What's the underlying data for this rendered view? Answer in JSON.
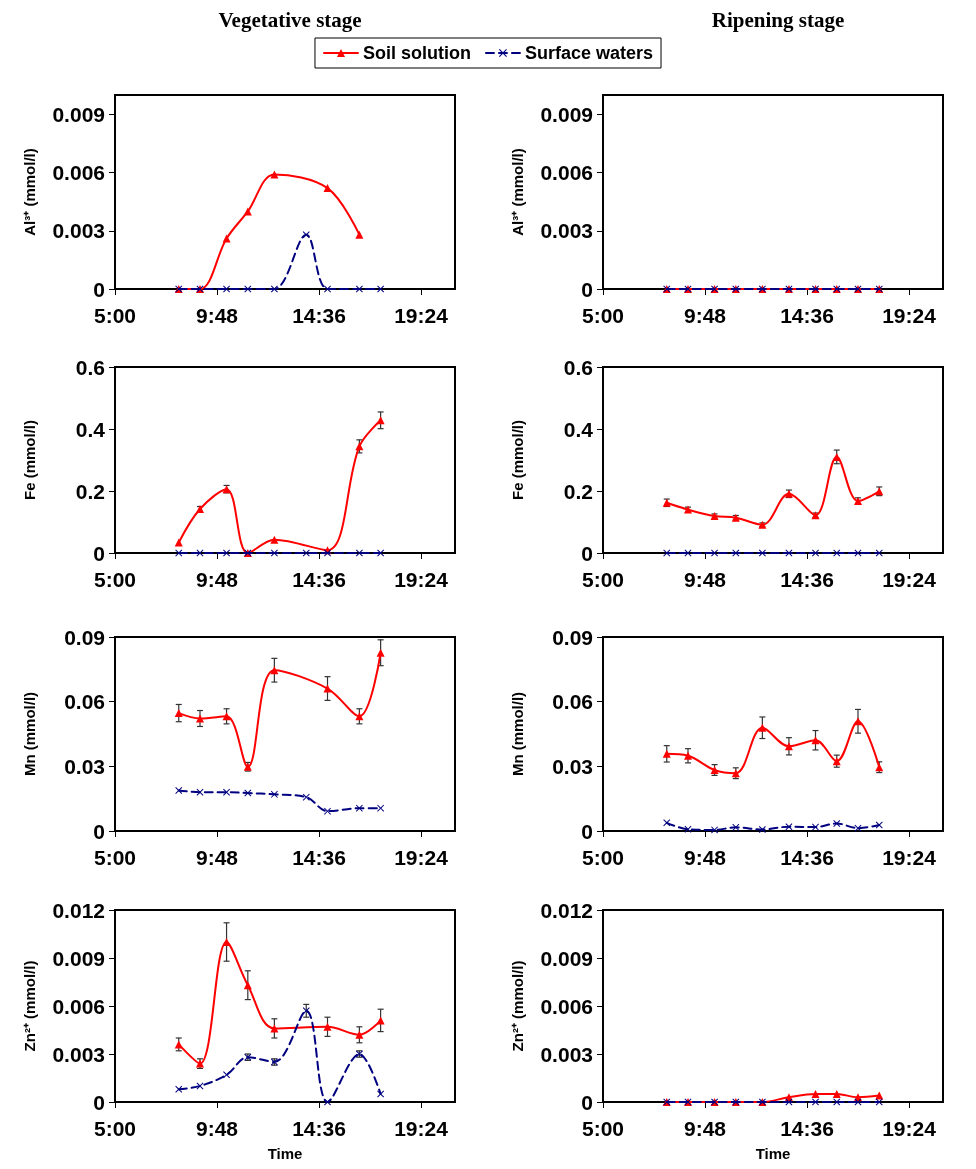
{
  "chart_data": [
    {
      "type": "line",
      "title": "Vegetative stage",
      "ylabel": "Al³⁺ (mmol/l)",
      "legend": "top",
      "xlim": [
        5,
        21
      ],
      "xticks": [
        {
          "value": 5,
          "label": "5:00"
        },
        {
          "value": 9.8,
          "label": "9:48"
        },
        {
          "value": 14.6,
          "label": "14:36"
        },
        {
          "value": 19.4,
          "label": "19:24"
        }
      ],
      "ylim": [
        0,
        0.01
      ],
      "yticks": [
        0,
        0.003,
        0.006,
        0.009
      ],
      "series": [
        {
          "name": "Soil solution",
          "color": "#ff0000",
          "marker": "triangle",
          "line_style": "solid",
          "x": [
            8,
            9,
            10.25,
            11.25,
            12.5,
            15,
            16.5
          ],
          "values": [
            0,
            0,
            0.0026,
            0.004,
            0.0059,
            0.0052,
            0.0028
          ]
        },
        {
          "name": "Surface waters",
          "color": "#000080",
          "marker": "cross",
          "line_style": "dashed",
          "x": [
            8,
            9,
            10.25,
            11.25,
            12.5,
            14,
            15,
            16.5,
            17.5
          ],
          "values": [
            0,
            0,
            0,
            0,
            0,
            0.0028,
            0,
            0,
            0
          ]
        }
      ]
    },
    {
      "type": "line",
      "title": "Ripening stage",
      "ylabel": "Al³⁺ (mmol/l)",
      "xlim": [
        5,
        21
      ],
      "xticks": [
        {
          "value": 5,
          "label": "5:00"
        },
        {
          "value": 9.8,
          "label": "9:48"
        },
        {
          "value": 14.6,
          "label": "14:36"
        },
        {
          "value": 19.4,
          "label": "19:24"
        }
      ],
      "ylim": [
        0,
        0.01
      ],
      "yticks": [
        0,
        0.003,
        0.006,
        0.009
      ],
      "series": [
        {
          "color": "#ff0000",
          "marker": "triangle",
          "line_style": "solid",
          "x": [
            8,
            9,
            10.25,
            11.25,
            12.5,
            13.75,
            15,
            16,
            17,
            18
          ],
          "values": [
            0,
            0,
            0,
            0,
            0,
            0,
            0,
            0,
            0,
            0
          ]
        },
        {
          "color": "#000080",
          "marker": "cross",
          "line_style": "dashed",
          "x": [
            8,
            9,
            10.25,
            11.25,
            12.5,
            13.75,
            15,
            16,
            17,
            18
          ],
          "values": [
            0,
            0,
            0,
            0,
            0,
            0,
            0,
            0,
            0,
            0
          ]
        }
      ]
    },
    {
      "type": "line",
      "ylabel": "Fe (mmol/l)",
      "xlim": [
        5,
        21
      ],
      "xticks": [
        {
          "value": 5,
          "label": "5:00"
        },
        {
          "value": 9.8,
          "label": "9:48"
        },
        {
          "value": 14.6,
          "label": "14:36"
        },
        {
          "value": 19.4,
          "label": "19:24"
        }
      ],
      "ylim": [
        0,
        0.6
      ],
      "yticks": [
        0,
        0.2,
        0.4,
        0.6
      ],
      "series": [
        {
          "color": "#ff0000",
          "marker": "triangle",
          "line_style": "solid",
          "x": [
            8,
            9,
            10.25,
            11.25,
            12.5,
            15,
            16.5,
            17.5
          ],
          "values": [
            0.034,
            0.142,
            0.206,
            0,
            0.043,
            0.009,
            0.344,
            0.428
          ],
          "errors": [
            null,
            0.008,
            0.012,
            null,
            null,
            null,
            0.021,
            0.027
          ]
        },
        {
          "color": "#000080",
          "marker": "cross",
          "line_style": "dashed",
          "x": [
            8,
            9,
            10.25,
            11.25,
            12.5,
            14,
            15,
            16.5,
            17.5
          ],
          "values": [
            0,
            0,
            0,
            0,
            0,
            0,
            0,
            0,
            0
          ]
        }
      ]
    },
    {
      "type": "line",
      "ylabel": "Fe (mmol/l)",
      "xlim": [
        5,
        21
      ],
      "xticks": [
        {
          "value": 5,
          "label": "5:00"
        },
        {
          "value": 9.8,
          "label": "9:48"
        },
        {
          "value": 14.6,
          "label": "14:36"
        },
        {
          "value": 19.4,
          "label": "19:24"
        }
      ],
      "ylim": [
        0,
        0.6
      ],
      "yticks": [
        0,
        0.2,
        0.4,
        0.6
      ],
      "series": [
        {
          "color": "#ff0000",
          "marker": "triangle",
          "line_style": "solid",
          "x": [
            8,
            9,
            10.25,
            11.25,
            12.5,
            13.75,
            15,
            16,
            17,
            18
          ],
          "values": [
            0.162,
            0.14,
            0.119,
            0.114,
            0.091,
            0.191,
            0.122,
            0.31,
            0.168,
            0.199
          ],
          "errors": [
            0.012,
            0.008,
            0.007,
            0.007,
            0.006,
            0.012,
            0.007,
            0.022,
            0.01,
            0.014
          ]
        },
        {
          "color": "#000080",
          "marker": "cross",
          "line_style": "dashed",
          "x": [
            8,
            9,
            10.25,
            11.25,
            12.5,
            13.75,
            15,
            16,
            17,
            18
          ],
          "values": [
            0,
            0,
            0,
            0,
            0,
            0,
            0,
            0,
            0,
            0
          ]
        }
      ]
    },
    {
      "type": "line",
      "ylabel": "Mn (mmol/l)",
      "xlim": [
        5,
        21
      ],
      "xticks": [
        {
          "value": 5,
          "label": "5:00"
        },
        {
          "value": 9.8,
          "label": "9:48"
        },
        {
          "value": 14.6,
          "label": "14:36"
        },
        {
          "value": 19.4,
          "label": "19:24"
        }
      ],
      "ylim": [
        0,
        0.09
      ],
      "yticks": [
        0,
        0.03,
        0.06,
        0.09
      ],
      "series": [
        {
          "color": "#ff0000",
          "marker": "triangle",
          "line_style": "solid",
          "x": [
            8,
            9,
            10.25,
            11.25,
            12.5,
            15,
            16.5,
            17.5
          ],
          "values": [
            0.0547,
            0.0522,
            0.0532,
            0.0298,
            0.0746,
            0.0661,
            0.0532,
            0.0827
          ],
          "errors": [
            0.004,
            0.0037,
            0.0035,
            0.002,
            0.0055,
            0.0055,
            0.0035,
            0.006
          ]
        },
        {
          "color": "#000080",
          "marker": "cross",
          "line_style": "dashed",
          "x": [
            8,
            9,
            10.25,
            11.25,
            12.5,
            14,
            15,
            16.5,
            17.5
          ],
          "values": [
            0.0188,
            0.018,
            0.018,
            0.0176,
            0.017,
            0.0157,
            0.0092,
            0.0106,
            0.0106
          ]
        }
      ]
    },
    {
      "type": "line",
      "ylabel": "Mn (mmol/l)",
      "xlim": [
        5,
        21
      ],
      "xticks": [
        {
          "value": 5,
          "label": "5:00"
        },
        {
          "value": 9.8,
          "label": "9:48"
        },
        {
          "value": 14.6,
          "label": "14:36"
        },
        {
          "value": 19.4,
          "label": "19:24"
        }
      ],
      "ylim": [
        0,
        0.09
      ],
      "yticks": [
        0,
        0.03,
        0.06,
        0.09
      ],
      "series": [
        {
          "color": "#ff0000",
          "marker": "triangle",
          "line_style": "solid",
          "x": [
            8,
            9,
            10.25,
            11.25,
            12.5,
            13.75,
            15,
            16,
            17,
            18
          ],
          "values": [
            0.0358,
            0.0349,
            0.0283,
            0.0268,
            0.0479,
            0.0393,
            0.0421,
            0.0324,
            0.0509,
            0.0296
          ],
          "errors": [
            0.0038,
            0.0033,
            0.0025,
            0.0025,
            0.005,
            0.004,
            0.0045,
            0.0028,
            0.0055,
            0.0025
          ]
        },
        {
          "color": "#000080",
          "marker": "cross",
          "line_style": "dashed",
          "x": [
            8,
            9,
            10.25,
            11.25,
            12.5,
            13.75,
            15,
            16,
            17,
            18
          ],
          "values": [
            0.0038,
            0.0008,
            0.0005,
            0.0017,
            0.0007,
            0.002,
            0.0018,
            0.0035,
            0.0013,
            0.0028
          ]
        }
      ]
    },
    {
      "type": "line",
      "ylabel": "Zn²⁺ (mmol/l)",
      "xlabel": "Time",
      "xlim": [
        5,
        21
      ],
      "xticks": [
        {
          "value": 5,
          "label": "5:00"
        },
        {
          "value": 9.8,
          "label": "9:48"
        },
        {
          "value": 14.6,
          "label": "14:36"
        },
        {
          "value": 19.4,
          "label": "19:24"
        }
      ],
      "ylim": [
        0,
        0.012
      ],
      "yticks": [
        0,
        0.003,
        0.006,
        0.009,
        0.012
      ],
      "series": [
        {
          "color": "#ff0000",
          "marker": "triangle",
          "line_style": "solid",
          "x": [
            8,
            9,
            10.25,
            11.25,
            12.5,
            15,
            16.5,
            17.5
          ],
          "values": [
            0.0036,
            0.0024,
            0.01,
            0.0073,
            0.0046,
            0.0047,
            0.0042,
            0.0051
          ],
          "errors": [
            0.0004,
            0.0003,
            0.0012,
            0.0009,
            0.0006,
            0.0006,
            0.0005,
            0.0007
          ]
        },
        {
          "color": "#000080",
          "marker": "cross",
          "line_style": "dashed",
          "x": [
            8,
            9,
            10.25,
            11.25,
            12.5,
            14,
            15,
            16.5,
            17.5
          ],
          "values": [
            0.0008,
            0.001,
            0.0017,
            0.0028,
            0.0025,
            0.0057,
            0,
            0.003,
            0.0005
          ],
          "errors": [
            null,
            null,
            null,
            0.0002,
            0.0002,
            0.0004,
            null,
            0.0002,
            null
          ]
        }
      ]
    },
    {
      "type": "line",
      "ylabel": "Zn²⁺ (mmol/l)",
      "xlabel": "Time",
      "xlim": [
        5,
        21
      ],
      "xticks": [
        {
          "value": 5,
          "label": "5:00"
        },
        {
          "value": 9.8,
          "label": "9:48"
        },
        {
          "value": 14.6,
          "label": "14:36"
        },
        {
          "value": 19.4,
          "label": "19:24"
        }
      ],
      "ylim": [
        0,
        0.012
      ],
      "yticks": [
        0,
        0.003,
        0.006,
        0.009,
        0.012
      ],
      "series": [
        {
          "color": "#ff0000",
          "marker": "triangle",
          "line_style": "solid",
          "x": [
            8,
            9,
            10.25,
            11.25,
            12.5,
            13.75,
            15,
            16,
            17,
            18
          ],
          "values": [
            0,
            0,
            0,
            0,
            0,
            0.0003,
            0.0005,
            0.0005,
            0.0003,
            0.0004
          ]
        },
        {
          "color": "#000080",
          "marker": "cross",
          "line_style": "dashed",
          "x": [
            8,
            9,
            10.25,
            11.25,
            12.5,
            13.75,
            15,
            16,
            17,
            18
          ],
          "values": [
            0,
            0,
            0,
            0,
            0,
            0,
            0,
            0,
            0,
            0
          ]
        }
      ]
    }
  ]
}
